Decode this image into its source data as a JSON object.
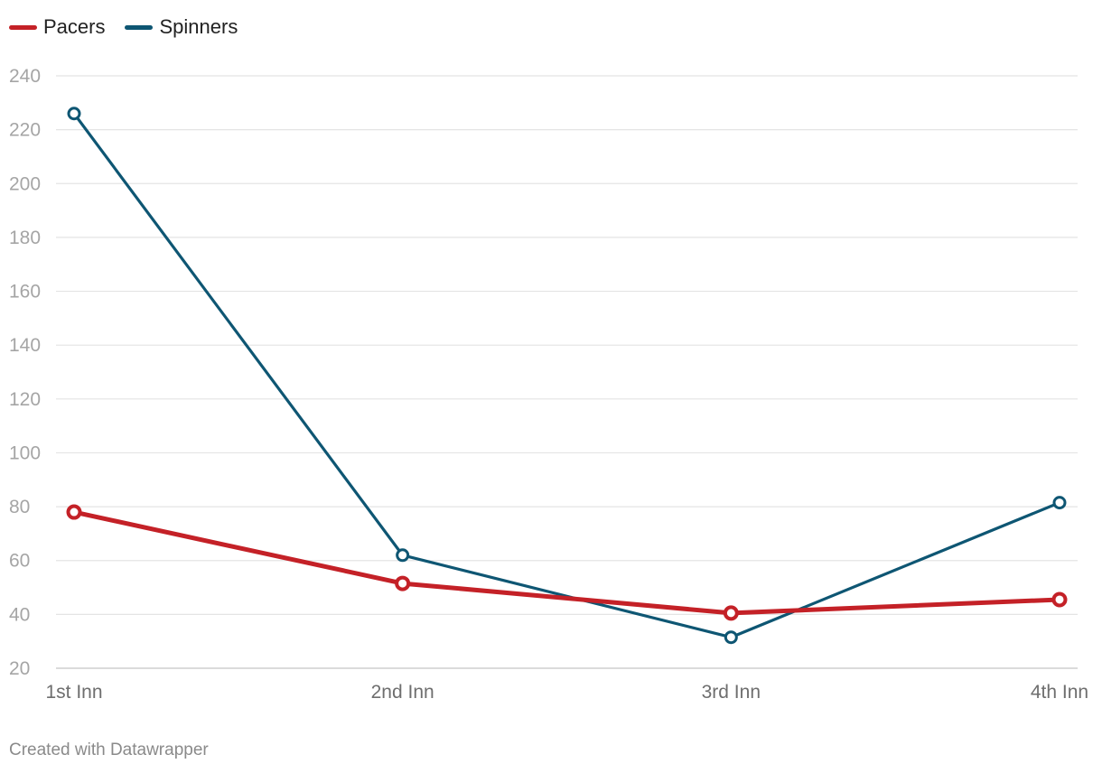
{
  "chart_data": {
    "type": "line",
    "categories": [
      "1st Inn",
      "2nd Inn",
      "3rd Inn",
      "4th Inn"
    ],
    "series": [
      {
        "name": "Pacers",
        "values": [
          78,
          51.5,
          40.5,
          45.5
        ],
        "color": "#c42127"
      },
      {
        "name": "Spinners",
        "values": [
          226,
          62,
          31.5,
          81.5
        ],
        "color": "#0e5673"
      }
    ],
    "yticks": [
      20,
      40,
      60,
      80,
      100,
      120,
      140,
      160,
      180,
      200,
      220,
      240
    ],
    "ylim": [
      20,
      240
    ],
    "grid": true,
    "legend_position": "top-left",
    "title": "",
    "xlabel": "",
    "ylabel": ""
  },
  "footer": "Created with Datawrapper"
}
